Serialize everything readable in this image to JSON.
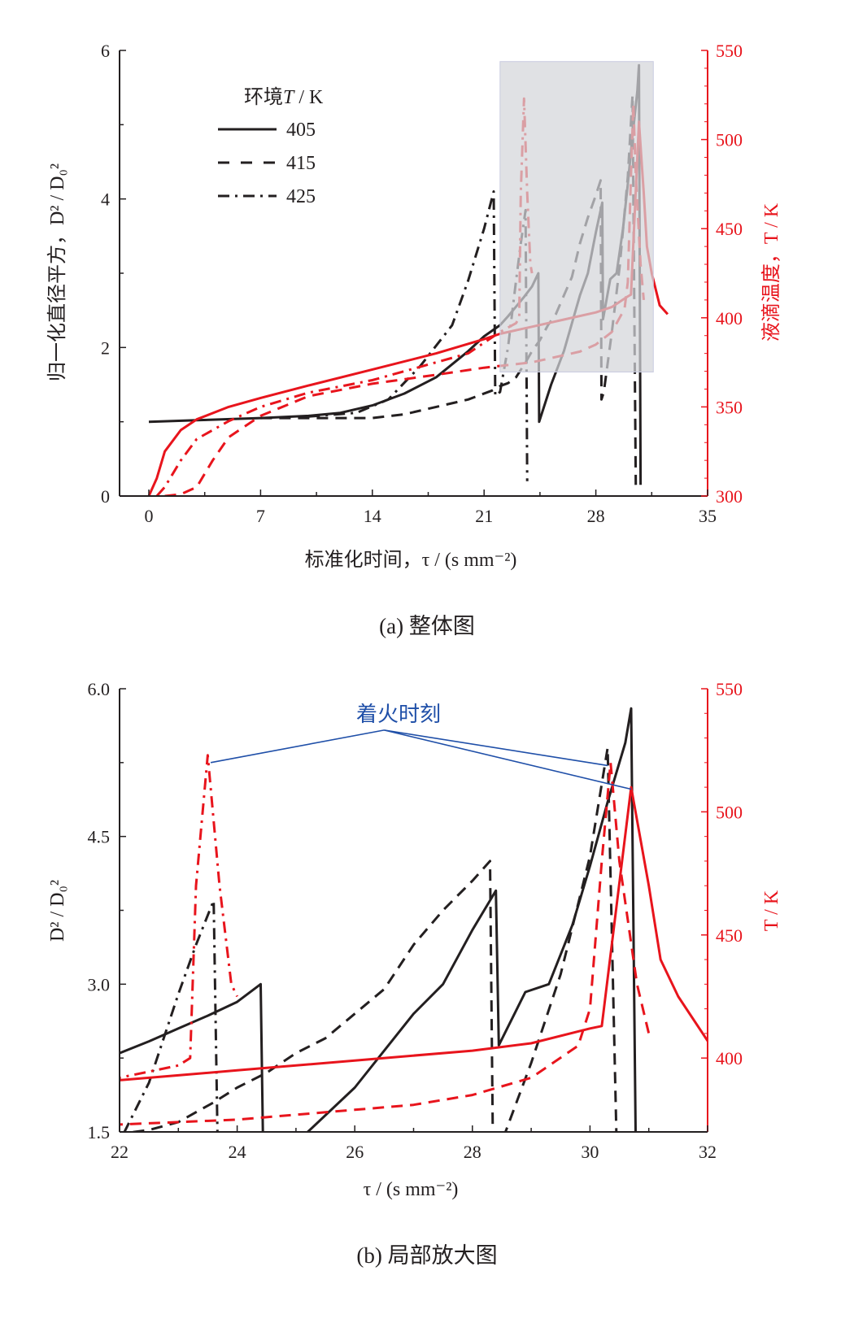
{
  "colors": {
    "black": "#231f20",
    "red": "#e8141c",
    "blue": "#1f4fa8",
    "box": "#d4d5da"
  },
  "chart_data": [
    {
      "type": "line",
      "title": "",
      "caption": "(a)  整体图",
      "xlabel": "标准化时间，τ / (s mm⁻²)",
      "ylabel": "归一化直径平方，D² / D₀²",
      "y2label": "液滴温度，T / K",
      "xlim": [
        0,
        35
      ],
      "ylim": [
        0,
        6
      ],
      "y2lim": [
        300,
        550
      ],
      "xticks": [
        "0",
        "7",
        "14",
        "21",
        "28",
        "35"
      ],
      "yticks": [
        "0",
        "2",
        "4",
        "6"
      ],
      "y2ticks": [
        "300",
        "350",
        "400",
        "450",
        "500",
        "550"
      ],
      "legend": {
        "title_pre": "环境",
        "title_var": "T",
        "title_post": " / K",
        "entries": [
          "405",
          "415",
          "425"
        ],
        "placement": "top-left"
      },
      "highlight_box": {
        "x": [
          22,
          31.6
        ],
        "y": [
          1.67,
          5.85
        ]
      }
    },
    {
      "type": "line",
      "caption": "(b)  局部放大图",
      "xlabel": "τ / (s mm⁻²)",
      "ylabel": "D² / D₀²",
      "y2label": "T / K",
      "xlim": [
        22,
        32
      ],
      "ylim": [
        1.5,
        6.0
      ],
      "y2lim": [
        370,
        550
      ],
      "xticks": [
        "22",
        "24",
        "26",
        "28",
        "30",
        "32"
      ],
      "yticks": [
        "1.5",
        "3.0",
        "4.5",
        "6.0"
      ],
      "y2ticks": [
        "400",
        "450",
        "500",
        "550"
      ],
      "annotation": {
        "text": "着火时刻",
        "anchor": [
          26.5,
          5.58
        ],
        "targets": [
          [
            23.55,
            5.25
          ],
          [
            30.3,
            5.22
          ],
          [
            30.7,
            4.98
          ]
        ]
      }
    }
  ],
  "series": [
    {
      "name": "405",
      "axis": "left",
      "style": "solid",
      "color": "black",
      "points": [
        [
          0,
          1.0
        ],
        [
          3,
          1.02
        ],
        [
          7,
          1.05
        ],
        [
          10,
          1.08
        ],
        [
          12,
          1.12
        ],
        [
          14,
          1.22
        ],
        [
          16,
          1.38
        ],
        [
          18,
          1.6
        ],
        [
          20,
          1.95
        ],
        [
          21,
          2.15
        ],
        [
          22,
          2.3
        ],
        [
          22.5,
          2.42
        ],
        [
          23,
          2.55
        ],
        [
          23.5,
          2.68
        ],
        [
          24,
          2.82
        ],
        [
          24.4,
          3.0
        ],
        [
          24.45,
          1.0
        ],
        [
          25.2,
          1.5
        ],
        [
          26,
          1.95
        ],
        [
          27,
          2.7
        ],
        [
          27.5,
          3.0
        ],
        [
          28,
          3.55
        ],
        [
          28.3,
          3.85
        ],
        [
          28.4,
          3.95
        ],
        [
          28.45,
          2.38
        ],
        [
          28.9,
          2.92
        ],
        [
          29.3,
          3.0
        ],
        [
          29.7,
          3.6
        ],
        [
          30,
          4.2
        ],
        [
          30.3,
          4.85
        ],
        [
          30.6,
          5.45
        ],
        [
          30.7,
          5.8
        ],
        [
          30.8,
          0.15
        ]
      ]
    },
    {
      "name": "415",
      "axis": "left",
      "style": "dashed",
      "color": "black",
      "points": [
        [
          7,
          1.05
        ],
        [
          10,
          1.05
        ],
        [
          14,
          1.05
        ],
        [
          16,
          1.1
        ],
        [
          18,
          1.2
        ],
        [
          20,
          1.3
        ],
        [
          21.5,
          1.42
        ],
        [
          22,
          1.48
        ],
        [
          22.5,
          1.52
        ],
        [
          23,
          1.6
        ],
        [
          23.6,
          1.8
        ],
        [
          24,
          1.95
        ],
        [
          24.5,
          2.1
        ],
        [
          25,
          2.3
        ],
        [
          25.5,
          2.45
        ],
        [
          26,
          2.7
        ],
        [
          26.5,
          2.95
        ],
        [
          27,
          3.4
        ],
        [
          27.5,
          3.75
        ],
        [
          28,
          4.05
        ],
        [
          28.3,
          4.25
        ],
        [
          28.35,
          1.3
        ],
        [
          28.5,
          1.4
        ],
        [
          29,
          2.2
        ],
        [
          29.5,
          3.1
        ],
        [
          30,
          4.3
        ],
        [
          30.3,
          5.4
        ],
        [
          30.5,
          0.15
        ]
      ]
    },
    {
      "name": "425",
      "axis": "left",
      "style": "dashdot",
      "color": "black",
      "points": [
        [
          10,
          1.07
        ],
        [
          13,
          1.12
        ],
        [
          15,
          1.3
        ],
        [
          17,
          1.75
        ],
        [
          19,
          2.3
        ],
        [
          20,
          2.9
        ],
        [
          21,
          3.6
        ],
        [
          21.6,
          4.1
        ],
        [
          21.7,
          1.35
        ],
        [
          22,
          1.4
        ],
        [
          22.5,
          2.0
        ],
        [
          23,
          2.9
        ],
        [
          23.3,
          3.4
        ],
        [
          23.6,
          3.85
        ],
        [
          23.7,
          0.2
        ]
      ]
    },
    {
      "name": "405",
      "axis": "right",
      "style": "solid",
      "color": "red",
      "points": [
        [
          0,
          300
        ],
        [
          0.5,
          310
        ],
        [
          1,
          325
        ],
        [
          2,
          337
        ],
        [
          3,
          343
        ],
        [
          5,
          350
        ],
        [
          7,
          355
        ],
        [
          10,
          362
        ],
        [
          14,
          371
        ],
        [
          18,
          380
        ],
        [
          21,
          388
        ],
        [
          22,
          391
        ],
        [
          23,
          393
        ],
        [
          24,
          395
        ],
        [
          26,
          399
        ],
        [
          28,
          403
        ],
        [
          29,
          406
        ],
        [
          30,
          412
        ],
        [
          30.2,
          413
        ],
        [
          30.7,
          510
        ],
        [
          31,
          470
        ],
        [
          31.2,
          440
        ],
        [
          31.5,
          425
        ],
        [
          32,
          407
        ],
        [
          32.5,
          402
        ]
      ]
    },
    {
      "name": "415",
      "axis": "right",
      "style": "dashed",
      "color": "red",
      "points": [
        [
          1,
          300
        ],
        [
          2,
          301
        ],
        [
          3,
          305
        ],
        [
          4,
          320
        ],
        [
          5,
          333
        ],
        [
          7,
          345
        ],
        [
          10,
          356
        ],
        [
          14,
          363
        ],
        [
          18,
          368
        ],
        [
          21,
          372
        ],
        [
          22,
          373
        ],
        [
          24,
          375
        ],
        [
          26,
          379
        ],
        [
          27,
          381
        ],
        [
          28,
          385
        ],
        [
          29,
          392
        ],
        [
          29.8,
          405
        ],
        [
          30,
          420
        ],
        [
          30.2,
          480
        ],
        [
          30.35,
          520
        ],
        [
          30.5,
          480
        ],
        [
          30.8,
          430
        ],
        [
          31,
          410
        ]
      ]
    },
    {
      "name": "425",
      "axis": "right",
      "style": "dashdot",
      "color": "red",
      "points": [
        [
          0.5,
          300
        ],
        [
          1,
          305
        ],
        [
          2,
          320
        ],
        [
          3,
          332
        ],
        [
          5,
          342
        ],
        [
          7,
          350
        ],
        [
          10,
          358
        ],
        [
          14,
          365
        ],
        [
          16,
          370
        ],
        [
          18,
          375
        ],
        [
          20,
          380
        ],
        [
          22,
          392
        ],
        [
          23,
          397
        ],
        [
          23.2,
          400
        ],
        [
          23.3,
          470
        ],
        [
          23.5,
          523
        ],
        [
          23.7,
          470
        ],
        [
          23.9,
          430
        ],
        [
          24,
          425
        ]
      ]
    }
  ]
}
